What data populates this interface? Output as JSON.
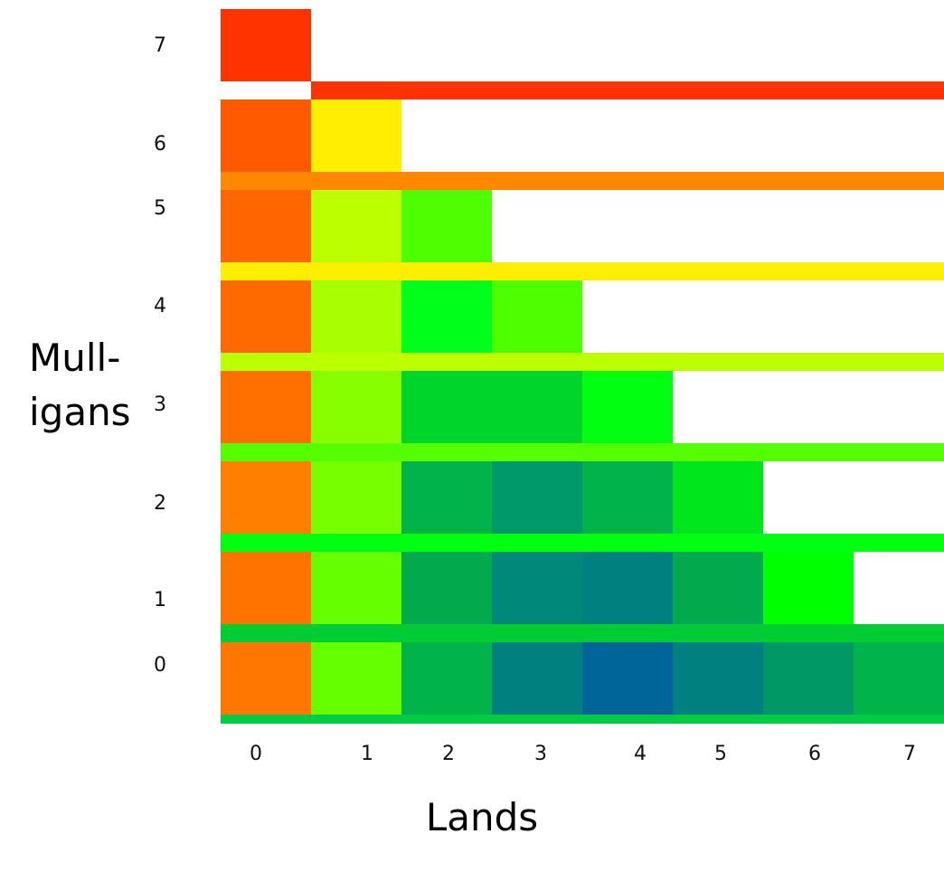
{
  "chart_data": {
    "type": "heatmap",
    "xlabel": "Lands",
    "ylabel_lines": [
      "Mull-",
      "igans"
    ],
    "x_ticks": [
      "0",
      "1",
      "2",
      "3",
      "4",
      "5",
      "6",
      "7"
    ],
    "y_ticks": [
      "0",
      "1",
      "2",
      "3",
      "4",
      "5",
      "6",
      "7"
    ],
    "cells": [
      {
        "mulligans": 7,
        "lands": 0,
        "color": "#ff3300"
      },
      {
        "mulligans": 6,
        "lands": 0,
        "color": "#ff5a00"
      },
      {
        "mulligans": 6,
        "lands": 1,
        "color": "#ffee00"
      },
      {
        "mulligans": 5,
        "lands": 0,
        "color": "#ff6600"
      },
      {
        "mulligans": 5,
        "lands": 1,
        "color": "#bbff00"
      },
      {
        "mulligans": 5,
        "lands": 2,
        "color": "#4dff00"
      },
      {
        "mulligans": 4,
        "lands": 0,
        "color": "#ff6a00"
      },
      {
        "mulligans": 4,
        "lands": 1,
        "color": "#a8ff00"
      },
      {
        "mulligans": 4,
        "lands": 2,
        "color": "#00ff1a"
      },
      {
        "mulligans": 4,
        "lands": 3,
        "color": "#4dff00"
      },
      {
        "mulligans": 3,
        "lands": 0,
        "color": "#ff7000"
      },
      {
        "mulligans": 3,
        "lands": 1,
        "color": "#88ff00"
      },
      {
        "mulligans": 3,
        "lands": 2,
        "color": "#00d52b"
      },
      {
        "mulligans": 3,
        "lands": 3,
        "color": "#00d52b"
      },
      {
        "mulligans": 3,
        "lands": 4,
        "color": "#00ff11"
      },
      {
        "mulligans": 2,
        "lands": 0,
        "color": "#ff8000"
      },
      {
        "mulligans": 2,
        "lands": 1,
        "color": "#77ff00"
      },
      {
        "mulligans": 2,
        "lands": 2,
        "color": "#00b34a"
      },
      {
        "mulligans": 2,
        "lands": 3,
        "color": "#00996a"
      },
      {
        "mulligans": 2,
        "lands": 4,
        "color": "#00b34a"
      },
      {
        "mulligans": 2,
        "lands": 5,
        "color": "#00e61c"
      },
      {
        "mulligans": 1,
        "lands": 0,
        "color": "#ff7400"
      },
      {
        "mulligans": 1,
        "lands": 1,
        "color": "#66ff00"
      },
      {
        "mulligans": 1,
        "lands": 2,
        "color": "#00aa4d"
      },
      {
        "mulligans": 1,
        "lands": 3,
        "color": "#00887a"
      },
      {
        "mulligans": 1,
        "lands": 4,
        "color": "#00807e"
      },
      {
        "mulligans": 1,
        "lands": 5,
        "color": "#00aa4d"
      },
      {
        "mulligans": 1,
        "lands": 6,
        "color": "#00ff00"
      },
      {
        "mulligans": 0,
        "lands": 0,
        "color": "#ff7700"
      },
      {
        "mulligans": 0,
        "lands": 1,
        "color": "#66ff00"
      },
      {
        "mulligans": 0,
        "lands": 2,
        "color": "#00b34a"
      },
      {
        "mulligans": 0,
        "lands": 3,
        "color": "#00807e"
      },
      {
        "mulligans": 0,
        "lands": 4,
        "color": "#006699"
      },
      {
        "mulligans": 0,
        "lands": 5,
        "color": "#00807e"
      },
      {
        "mulligans": 0,
        "lands": 6,
        "color": "#009966"
      },
      {
        "mulligans": 0,
        "lands": 7,
        "color": "#00b34a"
      }
    ],
    "separator_bars": [
      {
        "between_mulligans": "6-7",
        "color": "#ff3300"
      },
      {
        "between_mulligans": "5-6",
        "color": "#ff8800"
      },
      {
        "between_mulligans": "4-5",
        "color": "#ffee00"
      },
      {
        "between_mulligans": "3-4",
        "color": "#bbff00"
      },
      {
        "between_mulligans": "2-3",
        "color": "#55ff00"
      },
      {
        "between_mulligans": "1-2",
        "color": "#00ff11"
      },
      {
        "between_mulligans": "0-1",
        "color": "#00cc33"
      },
      {
        "between_mulligans": "below-0",
        "color": "#00cc44"
      }
    ]
  }
}
